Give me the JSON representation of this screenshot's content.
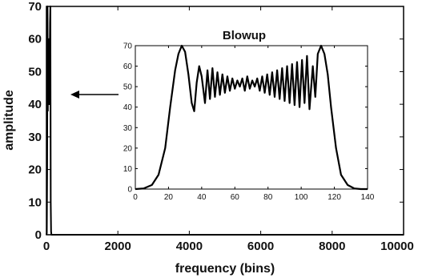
{
  "chart_data": [
    {
      "type": "line",
      "role": "main",
      "xlabel": "frequency (bins)",
      "ylabel": "amplitude",
      "xlim": [
        0,
        10000
      ],
      "ylim": [
        0,
        70
      ],
      "xticks": [
        0,
        2000,
        4000,
        6000,
        8000,
        10000
      ],
      "yticks": [
        0,
        10,
        20,
        30,
        40,
        50,
        60,
        70
      ],
      "xtick_labels": [
        "0",
        "2000",
        "4000",
        "6000",
        "8000",
        "10000"
      ],
      "ytick_labels": [
        "0",
        "10",
        "20",
        "30",
        "40",
        "50",
        "60",
        "70"
      ],
      "series": [
        {
          "x": [
            0,
            10,
            20,
            30,
            40,
            50,
            60,
            70,
            80,
            90,
            100,
            110,
            120,
            130,
            140,
            160,
            200,
            1000,
            5000,
            10000
          ],
          "values": [
            0,
            0.5,
            20,
            70,
            38,
            58,
            45,
            60,
            40,
            50,
            65,
            70,
            10,
            1,
            0,
            0,
            0,
            0,
            0,
            0
          ]
        }
      ],
      "annotation": {
        "type": "arrow",
        "direction": "left",
        "points_to": {
          "x": 100,
          "y": 45
        }
      },
      "grid": false
    },
    {
      "type": "line",
      "role": "inset",
      "title": "Blowup",
      "xlim": [
        0,
        140
      ],
      "ylim": [
        0,
        70
      ],
      "xticks": [
        0,
        20,
        40,
        60,
        80,
        100,
        120,
        140
      ],
      "yticks": [
        0,
        10,
        20,
        30,
        40,
        50,
        60,
        70
      ],
      "xtick_labels": [
        "0",
        "20",
        "40",
        "60",
        "80",
        "100",
        "120",
        "140"
      ],
      "ytick_labels": [
        "0",
        "10",
        "20",
        "30",
        "40",
        "50",
        "60",
        "70"
      ],
      "series": [
        {
          "x": [
            0,
            5,
            10,
            14,
            18,
            21,
            24,
            26,
            28,
            30,
            32,
            34,
            35.5,
            37,
            38.5,
            40,
            42,
            43.5,
            45,
            46.5,
            48,
            49.5,
            51,
            52.5,
            54,
            55.5,
            57,
            58.5,
            60,
            61.5,
            63,
            64.5,
            66,
            67.5,
            69,
            70.5,
            72,
            73.5,
            75,
            76.5,
            78,
            79.5,
            81,
            82.5,
            84,
            85.5,
            87,
            88.5,
            90,
            91.5,
            93,
            94.5,
            96,
            97.5,
            99,
            100.5,
            102,
            103.5,
            105,
            107,
            108.5,
            110,
            112,
            114,
            116,
            118,
            121,
            124,
            128,
            132,
            136,
            140
          ],
          "values": [
            0,
            0.3,
            2,
            7,
            20,
            40,
            58,
            66,
            70,
            67,
            56,
            42,
            38,
            52,
            60,
            55,
            42,
            58,
            44,
            59,
            45,
            57,
            46,
            56,
            47,
            55,
            48,
            54,
            49,
            53,
            50,
            54,
            48,
            55,
            49,
            53,
            50,
            54,
            48,
            55,
            47,
            56,
            46,
            57,
            45,
            58,
            44,
            59,
            43,
            60,
            42,
            61,
            41,
            62,
            40,
            63,
            42,
            65,
            39,
            60,
            45,
            66,
            70,
            66,
            56,
            40,
            20,
            7,
            2,
            0.3,
            0,
            0
          ]
        }
      ],
      "grid": false
    }
  ]
}
